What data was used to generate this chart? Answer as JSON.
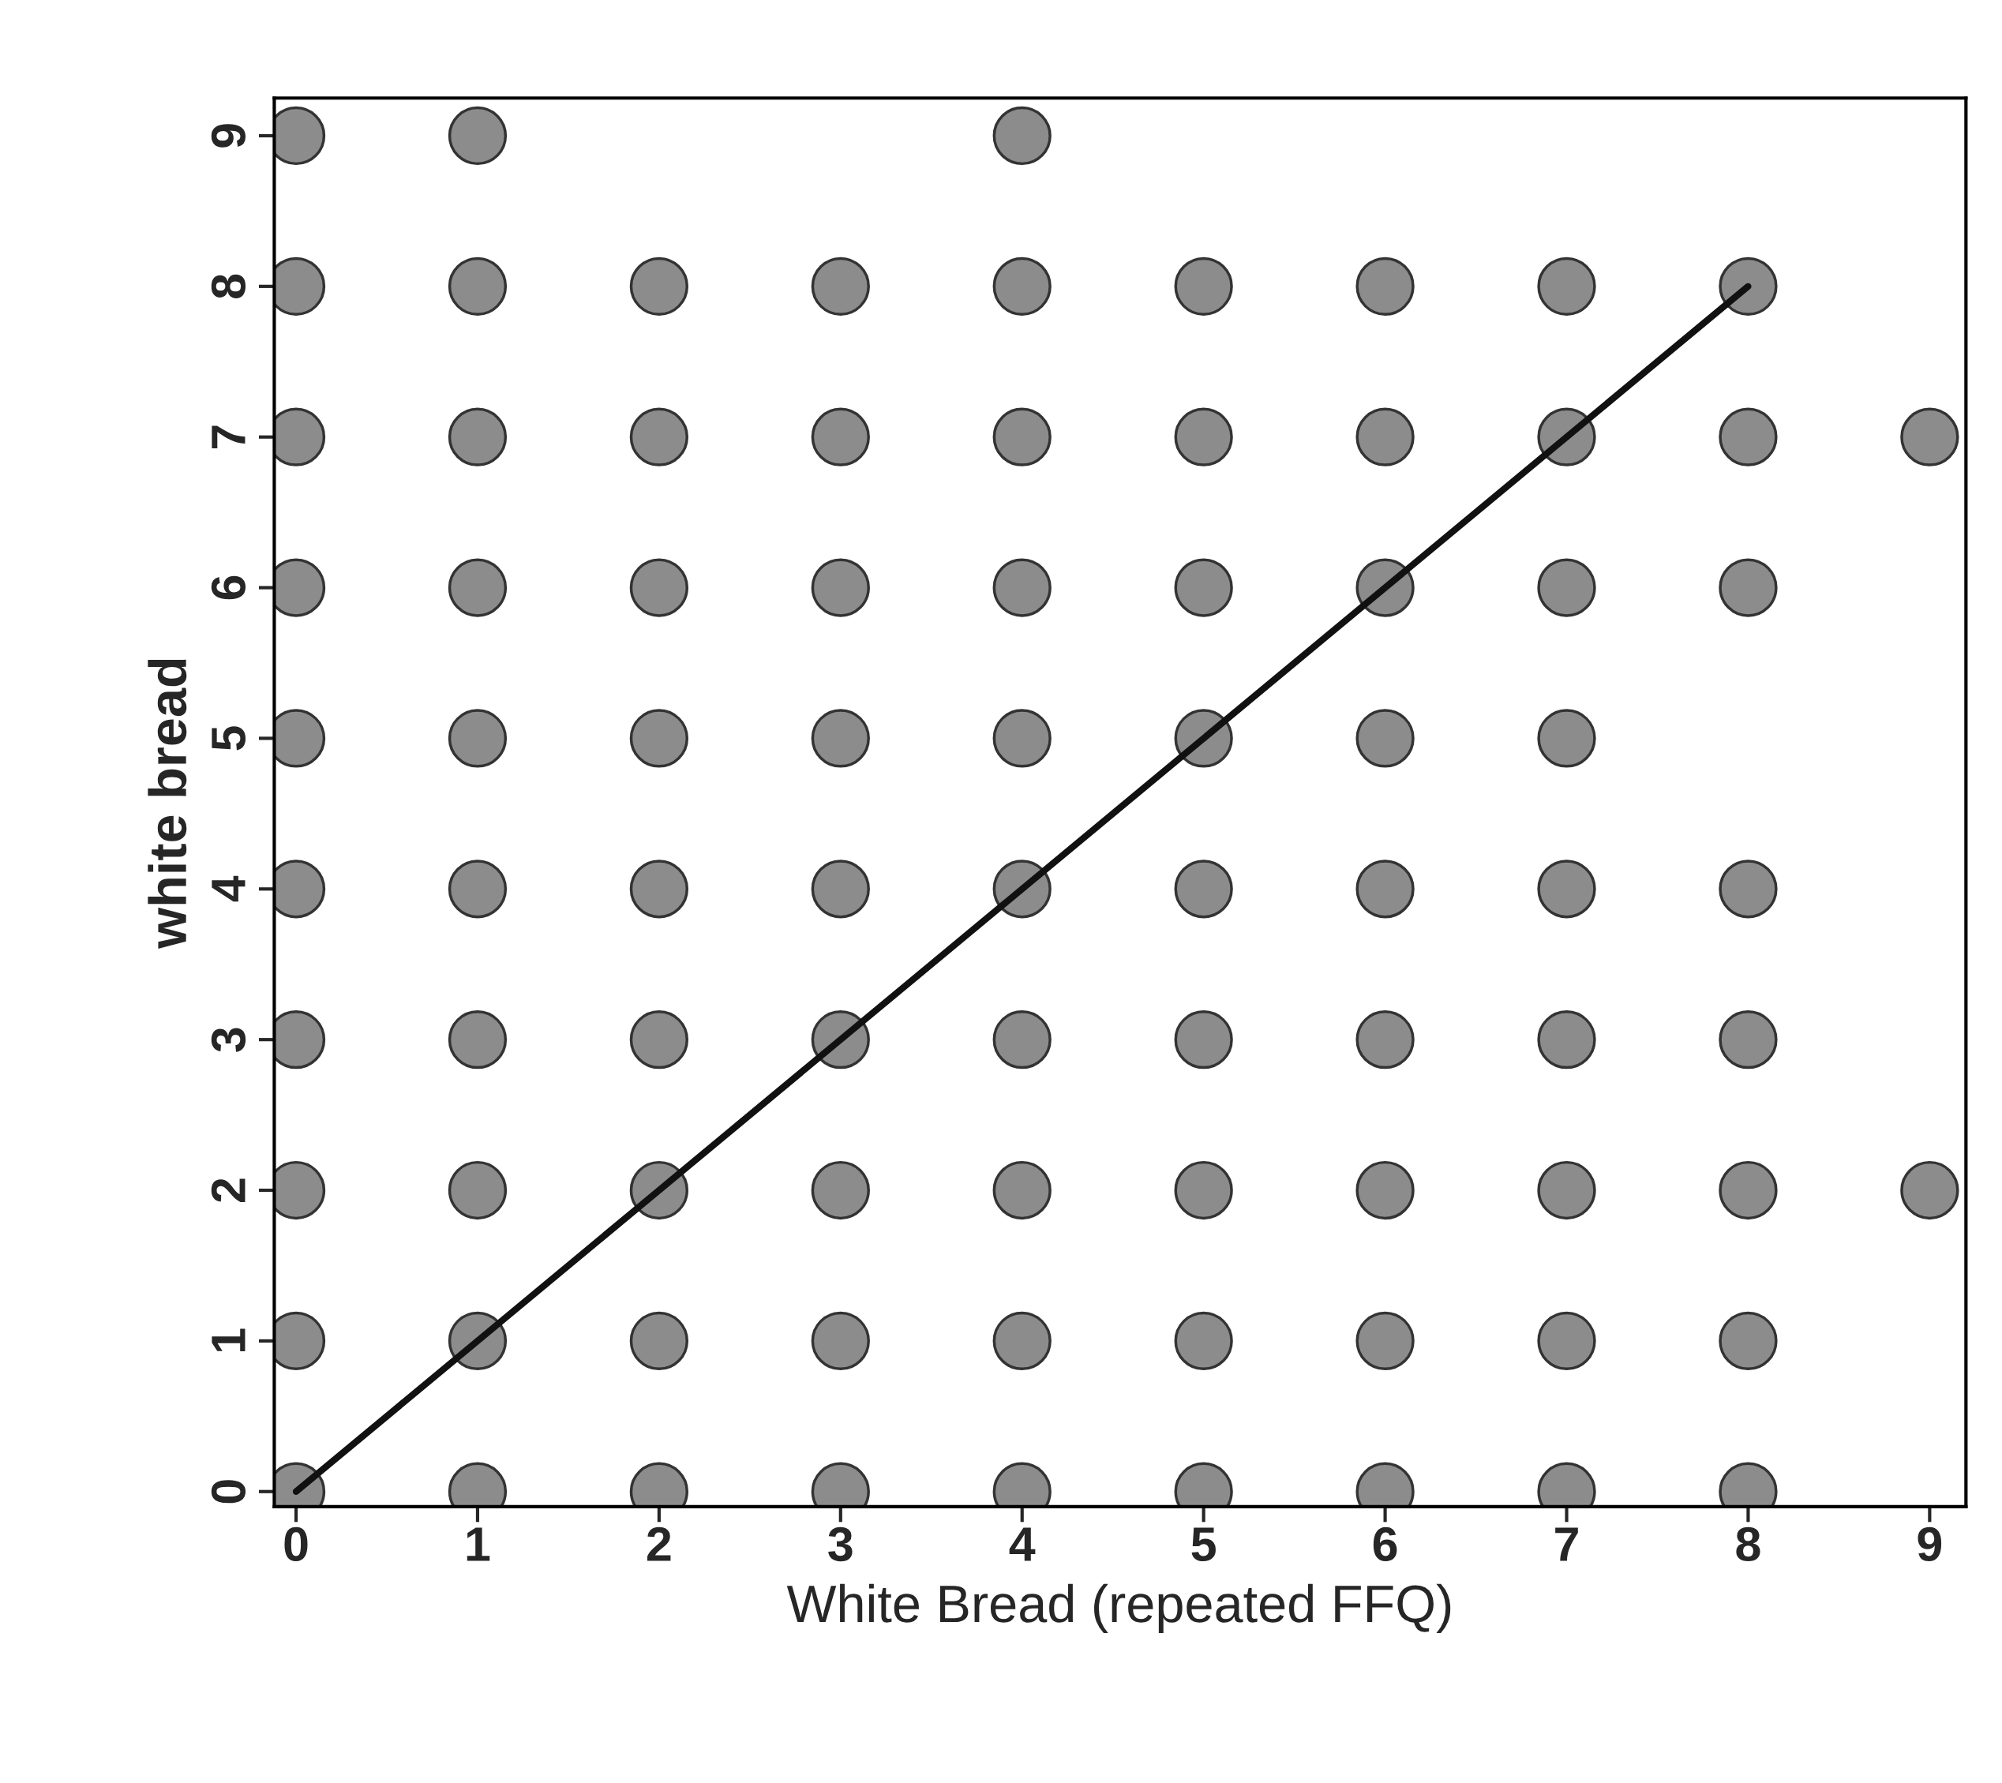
{
  "chart_data": {
    "type": "scatter",
    "xlabel": "White Bread (repeated FFQ)",
    "ylabel": "white bread",
    "xlim": [
      -0.12,
      9.2
    ],
    "ylim": [
      -0.1,
      9.25
    ],
    "xticks": [
      0,
      1,
      2,
      3,
      4,
      5,
      6,
      7,
      8,
      9
    ],
    "yticks": [
      0,
      1,
      2,
      3,
      4,
      5,
      6,
      7,
      8,
      9
    ],
    "grid": false,
    "marker": "circle",
    "series": [
      {
        "color": "#8c8c8c",
        "x": [
          0,
          1,
          4,
          0,
          1,
          2,
          3,
          4,
          5,
          6,
          7,
          8,
          0,
          1,
          2,
          3,
          4,
          5,
          6,
          7,
          8,
          9,
          0,
          1,
          2,
          3,
          4,
          5,
          6,
          7,
          8,
          0,
          1,
          2,
          3,
          4,
          5,
          6,
          7,
          0,
          1,
          2,
          3,
          4,
          5,
          6,
          7,
          8,
          0,
          1,
          2,
          3,
          4,
          5,
          6,
          7,
          8,
          0,
          1,
          2,
          3,
          4,
          5,
          6,
          7,
          8,
          9,
          0,
          1,
          2,
          3,
          4,
          5,
          6,
          7,
          8,
          0,
          1,
          2,
          3,
          4,
          5,
          6,
          7,
          8
        ],
        "values": [
          9,
          9,
          9,
          8,
          8,
          8,
          8,
          8,
          8,
          8,
          8,
          8,
          7,
          7,
          7,
          7,
          7,
          7,
          7,
          7,
          7,
          7,
          6,
          6,
          6,
          6,
          6,
          6,
          6,
          6,
          6,
          5,
          5,
          5,
          5,
          5,
          5,
          5,
          5,
          4,
          4,
          4,
          4,
          4,
          4,
          4,
          4,
          4,
          3,
          3,
          3,
          3,
          3,
          3,
          3,
          3,
          3,
          2,
          2,
          2,
          2,
          2,
          2,
          2,
          2,
          2,
          2,
          1,
          1,
          1,
          1,
          1,
          1,
          1,
          1,
          1,
          0,
          0,
          0,
          0,
          0,
          0,
          0,
          0,
          0
        ]
      },
      {
        "type": "line",
        "color": "#111111",
        "x": [
          0,
          8
        ],
        "values": [
          0,
          8
        ],
        "line_style": "solid",
        "marker": "none"
      }
    ]
  }
}
